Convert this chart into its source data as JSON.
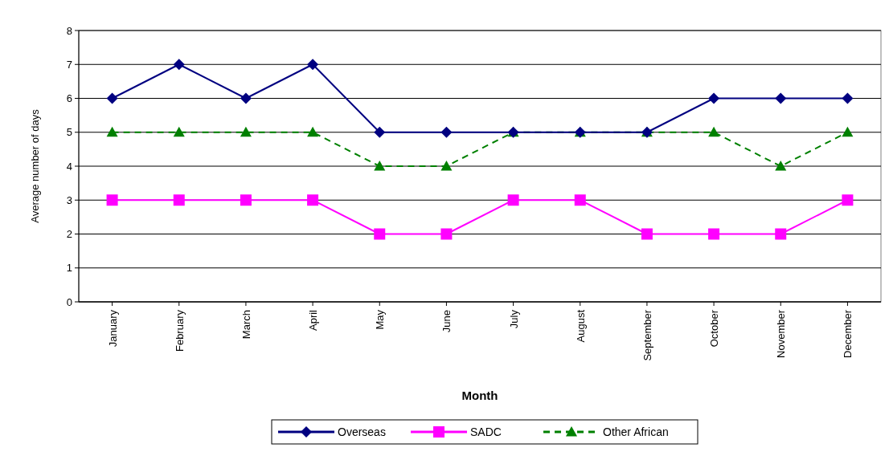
{
  "chart_data": {
    "type": "line",
    "xlabel": "Month",
    "ylabel": "Average number of days",
    "categories": [
      "January",
      "February",
      "March",
      "April",
      "May",
      "June",
      "July",
      "August",
      "September",
      "October",
      "November",
      "December"
    ],
    "ylim": [
      0,
      8
    ],
    "yticks": [
      0,
      1,
      2,
      3,
      4,
      5,
      6,
      7,
      8
    ],
    "grid": "y",
    "legend": "bottom",
    "series": [
      {
        "name": "Overseas",
        "color": "#000080",
        "marker": "diamond",
        "line_style": "solid",
        "values": [
          6,
          7,
          6,
          7,
          5,
          5,
          5,
          5,
          5,
          6,
          6,
          6
        ]
      },
      {
        "name": "SADC",
        "color": "#ff00ff",
        "marker": "square",
        "line_style": "solid",
        "values": [
          3,
          3,
          3,
          3,
          2,
          2,
          3,
          3,
          2,
          2,
          2,
          3
        ]
      },
      {
        "name": "Other African",
        "color": "#008000",
        "marker": "triangle",
        "line_style": "dashed",
        "values": [
          5,
          5,
          5,
          5,
          4,
          4,
          5,
          5,
          5,
          5,
          4,
          5
        ]
      }
    ]
  }
}
